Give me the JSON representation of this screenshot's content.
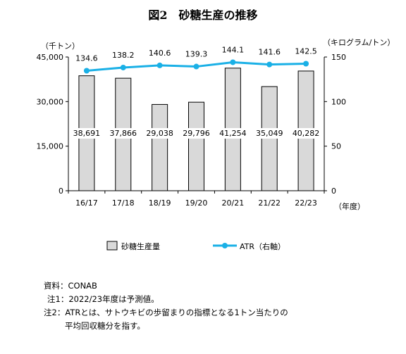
{
  "title": "図2　砂糖生産の推移",
  "chart_data": {
    "type": "bar+line",
    "categories": [
      "16/17",
      "17/18",
      "18/19",
      "19/20",
      "20/21",
      "21/22",
      "22/23"
    ],
    "x_unit": "（年度）",
    "bar_series": {
      "name": "砂糖生産量",
      "values": [
        38691,
        37866,
        29038,
        29796,
        41254,
        35049,
        40282
      ],
      "labels": [
        "38,691",
        "37,866",
        "29,038",
        "29,796",
        "41,254",
        "35,049",
        "40,282"
      ],
      "color": "#d9d9d9",
      "border": "#000000"
    },
    "line_series": {
      "name": "ATR（右軸）",
      "values": [
        134.6,
        138.2,
        140.6,
        139.3,
        144.1,
        141.6,
        142.5
      ],
      "labels": [
        "134.6",
        "138.2",
        "140.6",
        "139.3",
        "144.1",
        "141.6",
        "142.5"
      ],
      "color": "#1ab0e6",
      "axis": "right"
    },
    "left_axis": {
      "unit": "（千トン）",
      "min": 0,
      "max": 45000,
      "ticks": [
        0,
        15000,
        30000,
        45000
      ],
      "tick_labels": [
        "0",
        "15,000",
        "30,000",
        "45,000"
      ]
    },
    "right_axis": {
      "unit": "（キログラム/トン）",
      "min": 0,
      "max": 150,
      "ticks": [
        0,
        50,
        100,
        150
      ],
      "tick_labels": [
        "0",
        "50",
        "100",
        "150"
      ]
    },
    "grid": false,
    "legend_position": "bottom"
  },
  "notes": {
    "source": "資料：CONAB",
    "note1": "注1：2022/23年度は予測値。",
    "note2_line1": "注2：ATRとは、サトウキビの歩留まりの指標となる1トン当たりの",
    "note2_line2": "平均回収糖分を指す。"
  }
}
